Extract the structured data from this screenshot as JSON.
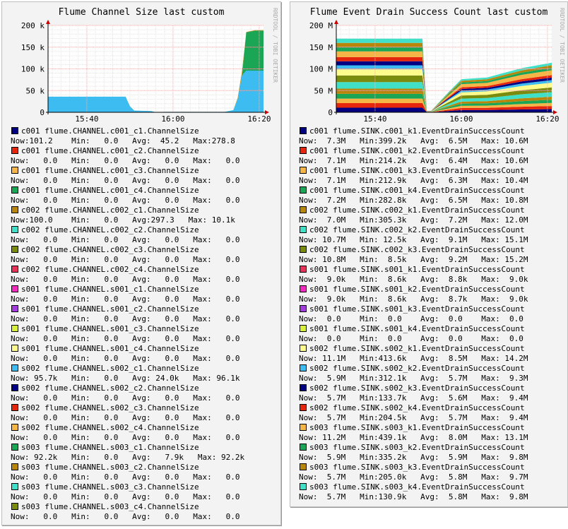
{
  "charts": [
    {
      "title": "Flume Channel Size last custom",
      "watermark": "RRDTOOL / TOBI OETIKER",
      "legend": [
        {
          "label": "c001 flume.CHANNEL.c001_c1.ChannelSize",
          "color": "#000080",
          "stats": "Now:101.2    Min:   0.0   Avg:  45.2   Max:278.8"
        },
        {
          "label": "c001 flume.CHANNEL.c001_c2.ChannelSize",
          "color": "#e6260c",
          "stats": "Now:   0.0   Min:   0.0   Avg:   0.0   Max:   0.0"
        },
        {
          "label": "c001 flume.CHANNEL.c001_c3.ChannelSize",
          "color": "#f5b547",
          "stats": "Now:   0.0   Min:   0.0   Avg:   0.0   Max:   0.0"
        },
        {
          "label": "c001 flume.CHANNEL.c001_c4.ChannelSize",
          "color": "#1aa655",
          "stats": "Now:   0.0   Min:   0.0   Avg:   0.0   Max:   0.0"
        },
        {
          "label": "c002 flume.CHANNEL.c002_c1.ChannelSize",
          "color": "#b8860b",
          "stats": "Now:100.0    Min:   0.0   Avg:297.3   Max: 10.1k"
        },
        {
          "label": "c002 flume.CHANNEL.c002_c2.ChannelSize",
          "color": "#40e0c8",
          "stats": "Now:   0.0   Min:   0.0   Avg:   0.0   Max:   0.0"
        },
        {
          "label": "c002 flume.CHANNEL.c002_c3.ChannelSize",
          "color": "#7b8b0e",
          "stats": "Now:   0.0   Min:   0.0   Avg:   0.0   Max:   0.0"
        },
        {
          "label": "c002 flume.CHANNEL.c002_c4.ChannelSize",
          "color": "#e6335a",
          "stats": "Now:   0.0   Min:   0.0   Avg:   0.0   Max:   0.0"
        },
        {
          "label": "s001 flume.CHANNEL.s001_c1.ChannelSize",
          "color": "#f02cbf",
          "stats": "Now:   0.0   Min:   0.0   Avg:   0.0   Max:   0.0"
        },
        {
          "label": "s001 flume.CHANNEL.s001_c2.ChannelSize",
          "color": "#a43cdc",
          "stats": "Now:   0.0   Min:   0.0   Avg:   0.0   Max:   0.0"
        },
        {
          "label": "s001 flume.CHANNEL.s001_c3.ChannelSize",
          "color": "#d8f03c",
          "stats": "Now:   0.0   Min:   0.0   Avg:   0.0   Max:   0.0"
        },
        {
          "label": "s001 flume.CHANNEL.s001_c4.ChannelSize",
          "color": "#fffb8c",
          "stats": "Now:   0.0   Min:   0.0   Avg:   0.0   Max:   0.0"
        },
        {
          "label": "s002 flume.CHANNEL.s002_c1.ChannelSize",
          "color": "#3cbcf0",
          "stats": "Now: 95.7k   Min:   0.0   Avg: 24.0k   Max: 96.1k"
        },
        {
          "label": "s002 flume.CHANNEL.s002_c2.ChannelSize",
          "color": "#000080",
          "stats": "Now:   0.0   Min:   0.0   Avg:   0.0   Max:   0.0"
        },
        {
          "label": "s002 flume.CHANNEL.s002_c3.ChannelSize",
          "color": "#e6260c",
          "stats": "Now:   0.0   Min:   0.0   Avg:   0.0   Max:   0.0"
        },
        {
          "label": "s002 flume.CHANNEL.s002_c4.ChannelSize",
          "color": "#f5b547",
          "stats": "Now:   0.0   Min:   0.0   Avg:   0.0   Max:   0.0"
        },
        {
          "label": "s003 flume.CHANNEL.s003_c1.ChannelSize",
          "color": "#1aa655",
          "stats": "Now: 92.2k   Min:   0.0   Avg:   7.9k   Max: 92.2k"
        },
        {
          "label": "s003 flume.CHANNEL.s003_c2.ChannelSize",
          "color": "#b8860b",
          "stats": "Now:   0.0   Min:   0.0   Avg:   0.0   Max:   0.0"
        },
        {
          "label": "s003 flume.CHANNEL.s003_c3.ChannelSize",
          "color": "#40e0c8",
          "stats": "Now:   0.0   Min:   0.0   Avg:   0.0   Max:   0.0"
        },
        {
          "label": "s003 flume.CHANNEL.s003_c4.ChannelSize",
          "color": "#7b8b0e",
          "stats": "Now:   0.0   Min:   0.0   Avg:   0.0   Max:   0.0"
        }
      ]
    },
    {
      "title": "Flume Event Drain Success Count last custom",
      "watermark": "RRDTOOL / TOBI OETIKER",
      "legend": [
        {
          "label": "c001 flume.SINK.c001_k1.EventDrainSuccessCount",
          "color": "#000080",
          "stats": "Now:  7.3M   Min:399.2k   Avg:  6.5M   Max: 10.6M"
        },
        {
          "label": "c001 flume.SINK.c001_k2.EventDrainSuccessCount",
          "color": "#e6260c",
          "stats": "Now:  7.1M   Min:214.2k   Avg:  6.4M   Max: 10.6M"
        },
        {
          "label": "c001 flume.SINK.c001_k3.EventDrainSuccessCount",
          "color": "#f5b547",
          "stats": "Now:  7.1M   Min:212.9k   Avg:  6.3M   Max: 10.4M"
        },
        {
          "label": "c001 flume.SINK.c001_k4.EventDrainSuccessCount",
          "color": "#1aa655",
          "stats": "Now:  7.2M   Min:282.8k   Avg:  6.5M   Max: 10.8M"
        },
        {
          "label": "c002 flume.SINK.c002_k1.EventDrainSuccessCount",
          "color": "#b8860b",
          "stats": "Now:  7.0M   Min:305.3k   Avg:  7.2M   Max: 12.0M"
        },
        {
          "label": "c002 flume.SINK.c002_k2.EventDrainSuccessCount",
          "color": "#40e0c8",
          "stats": "Now: 10.7M   Min: 12.5k   Avg:  9.1M   Max: 15.1M"
        },
        {
          "label": "c002 flume.SINK.c002_k3.EventDrainSuccessCount",
          "color": "#7b8b0e",
          "stats": "Now: 10.8M   Min:  8.5k   Avg:  9.2M   Max: 15.2M"
        },
        {
          "label": "s001 flume.SINK.s001_k1.EventDrainSuccessCount",
          "color": "#e6335a",
          "stats": "Now:  9.0k   Min:  8.6k   Avg:  8.8k   Max:  9.0k"
        },
        {
          "label": "s001 flume.SINK.s001_k2.EventDrainSuccessCount",
          "color": "#f02cbf",
          "stats": "Now:  9.0k   Min:  8.6k   Avg:  8.7k   Max:  9.0k"
        },
        {
          "label": "s001 flume.SINK.s001_k3.EventDrainSuccessCount",
          "color": "#a43cdc",
          "stats": "Now:  0.0    Min:  0.0    Avg:  0.0    Max:  0.0"
        },
        {
          "label": "s001 flume.SINK.s001_k4.EventDrainSuccessCount",
          "color": "#d8f03c",
          "stats": "Now:  0.0    Min:  0.0    Avg:  0.0    Max:  0.0"
        },
        {
          "label": "s002 flume.SINK.s002_k1.EventDrainSuccessCount",
          "color": "#fffb8c",
          "stats": "Now: 11.1M   Min:413.6k   Avg:  8.5M   Max: 14.2M"
        },
        {
          "label": "s002 flume.SINK.s002_k2.EventDrainSuccessCount",
          "color": "#3cbcf0",
          "stats": "Now:  5.9M   Min:312.1k   Avg:  5.7M   Max:  9.3M"
        },
        {
          "label": "s002 flume.SINK.s002_k3.EventDrainSuccessCount",
          "color": "#000080",
          "stats": "Now:  5.7M   Min:133.7k   Avg:  5.6M   Max:  9.4M"
        },
        {
          "label": "s002 flume.SINK.s002_k4.EventDrainSuccessCount",
          "color": "#e6260c",
          "stats": "Now:  5.7M   Min:204.5k   Avg:  5.7M   Max:  9.4M"
        },
        {
          "label": "s003 flume.SINK.s003_k1.EventDrainSuccessCount",
          "color": "#f5b547",
          "stats": "Now: 11.2M   Min:439.1k   Avg:  8.0M   Max: 13.1M"
        },
        {
          "label": "s003 flume.SINK.s003_k2.EventDrainSuccessCount",
          "color": "#1aa655",
          "stats": "Now:  5.9M   Min:335.2k   Avg:  5.9M   Max:  9.8M"
        },
        {
          "label": "s003 flume.SINK.s003_k3.EventDrainSuccessCount",
          "color": "#b8860b",
          "stats": "Now:  5.7M   Min:205.0k   Avg:  5.8M   Max:  9.7M"
        },
        {
          "label": "s003 flume.SINK.s003_k4.EventDrainSuccessCount",
          "color": "#40e0c8",
          "stats": "Now:  5.7M   Min:130.9k   Avg:  5.8M   Max:  9.8M"
        }
      ]
    }
  ],
  "chart_data": [
    {
      "type": "area",
      "title": "Flume Channel Size last custom",
      "x_ticks": [
        "15:40",
        "16:00",
        "16:20"
      ],
      "y_ticks": [
        "0",
        "50 k",
        "100 k",
        "150 k",
        "200 k"
      ],
      "xlim": [
        "15:31",
        "16:21"
      ],
      "ylim": [
        0,
        200000
      ],
      "grid": true,
      "stacked": true,
      "x": [
        "15:31",
        "15:49",
        "15:50",
        "15:51",
        "15:55",
        "15:56",
        "15:58",
        "16:12",
        "16:14",
        "16:15",
        "16:16",
        "16:17",
        "16:18",
        "16:19",
        "16:20",
        "16:21"
      ],
      "series": [
        {
          "name": "s002 flume.CHANNEL.s002_c1.ChannelSize",
          "color": "#3cbcf0",
          "values": [
            36000,
            36000,
            14000,
            4000,
            3000,
            0,
            1000,
            1000,
            5000,
            30000,
            85000,
            96000,
            96000,
            96000,
            96000,
            96000
          ]
        },
        {
          "name": "s003 flume.CHANNEL.s003_c1.ChannelSize",
          "color": "#1aa655",
          "values": [
            0,
            0,
            0,
            0,
            0,
            0,
            0,
            0,
            0,
            0,
            0,
            88000,
            90000,
            92000,
            92000,
            92000
          ]
        },
        {
          "name": "c002 flume.CHANNEL.c002_c1.ChannelSize",
          "color": "#b8860b",
          "values": [
            0,
            0,
            0,
            0,
            0,
            0,
            0,
            0,
            0,
            3000,
            8000,
            1000,
            1000,
            1000,
            1000,
            1000
          ]
        }
      ]
    },
    {
      "type": "area",
      "title": "Flume Event Drain Success Count last custom",
      "x_ticks": [
        "15:40",
        "16:00",
        "16:20"
      ],
      "y_ticks": [
        "0",
        "50 M",
        "100 M",
        "150 M",
        "200 M"
      ],
      "xlim": [
        "15:31",
        "16:21"
      ],
      "ylim": [
        0,
        200000000
      ],
      "grid": true,
      "stacked": true,
      "x": [
        "15:31",
        "15:51",
        "15:52",
        "15:53",
        "15:57",
        "16:00",
        "16:06",
        "16:08",
        "16:14",
        "16:21"
      ],
      "series": [
        {
          "name": "c001 flume.SINK.c001_k1.EventDrainSuccessCount",
          "color": "#000080",
          "values": [
            10600000,
            10600000,
            400000,
            400000,
            3000000,
            5000000,
            5200000,
            5500000,
            6500000,
            7300000
          ]
        },
        {
          "name": "c001 flume.SINK.c001_k2.EventDrainSuccessCount",
          "color": "#e6260c",
          "values": [
            10600000,
            10600000,
            200000,
            200000,
            2900000,
            4900000,
            5100000,
            5400000,
            6400000,
            7100000
          ]
        },
        {
          "name": "c001 flume.SINK.c001_k3.EventDrainSuccessCount",
          "color": "#f5b547",
          "values": [
            10400000,
            10400000,
            200000,
            200000,
            2900000,
            4900000,
            5100000,
            5400000,
            6300000,
            7100000
          ]
        },
        {
          "name": "c001 flume.SINK.c001_k4.EventDrainSuccessCount",
          "color": "#1aa655",
          "values": [
            10800000,
            10800000,
            300000,
            300000,
            3000000,
            5000000,
            5200000,
            5500000,
            6500000,
            7200000
          ]
        },
        {
          "name": "c002 flume.SINK.c002_k1.EventDrainSuccessCount",
          "color": "#b8860b",
          "values": [
            12000000,
            12000000,
            300000,
            300000,
            2800000,
            4800000,
            5000000,
            5300000,
            6300000,
            7000000
          ]
        },
        {
          "name": "c002 flume.SINK.c002_k2.EventDrainSuccessCount",
          "color": "#40e0c8",
          "values": [
            15100000,
            15100000,
            0,
            0,
            4200000,
            7000000,
            7400000,
            7900000,
            9400000,
            10700000
          ]
        },
        {
          "name": "c002 flume.SINK.c002_k3.EventDrainSuccessCount",
          "color": "#7b8b0e",
          "values": [
            15200000,
            15200000,
            0,
            0,
            4200000,
            7000000,
            7400000,
            7900000,
            9500000,
            10800000
          ]
        },
        {
          "name": "s002 flume.SINK.s002_k1.EventDrainSuccessCount",
          "color": "#fffb8c",
          "values": [
            14200000,
            14200000,
            400000,
            400000,
            4400000,
            7300000,
            7700000,
            8200000,
            9800000,
            11100000
          ]
        },
        {
          "name": "s002 flume.SINK.s002_k2.EventDrainSuccessCount",
          "color": "#3cbcf0",
          "values": [
            9300000,
            9300000,
            300000,
            300000,
            2400000,
            4000000,
            4200000,
            4500000,
            5300000,
            5900000
          ]
        },
        {
          "name": "s002 flume.SINK.s002_k3.EventDrainSuccessCount",
          "color": "#000080",
          "values": [
            9400000,
            9400000,
            100000,
            100000,
            2300000,
            3800000,
            4000000,
            4300000,
            5100000,
            5700000
          ]
        },
        {
          "name": "s002 flume.SINK.s002_k4.EventDrainSuccessCount",
          "color": "#e6260c",
          "values": [
            9400000,
            9400000,
            200000,
            200000,
            2300000,
            3800000,
            4000000,
            4300000,
            5100000,
            5700000
          ]
        },
        {
          "name": "s003 flume.SINK.s003_k1.EventDrainSuccessCount",
          "color": "#f5b547",
          "values": [
            13100000,
            13100000,
            400000,
            400000,
            4400000,
            7300000,
            7700000,
            8300000,
            9900000,
            11200000
          ]
        },
        {
          "name": "s003 flume.SINK.s003_k2.EventDrainSuccessCount",
          "color": "#1aa655",
          "values": [
            9800000,
            9800000,
            300000,
            300000,
            2400000,
            3900000,
            4100000,
            4400000,
            5300000,
            5900000
          ]
        },
        {
          "name": "s003 flume.SINK.s003_k3.EventDrainSuccessCount",
          "color": "#b8860b",
          "values": [
            9700000,
            9700000,
            200000,
            200000,
            2300000,
            3800000,
            4000000,
            4300000,
            5100000,
            5700000
          ]
        },
        {
          "name": "s003 flume.SINK.s003_k4.EventDrainSuccessCount",
          "color": "#40e0c8",
          "values": [
            9800000,
            9800000,
            100000,
            100000,
            2300000,
            3800000,
            4000000,
            4300000,
            5100000,
            5700000
          ]
        }
      ]
    }
  ]
}
